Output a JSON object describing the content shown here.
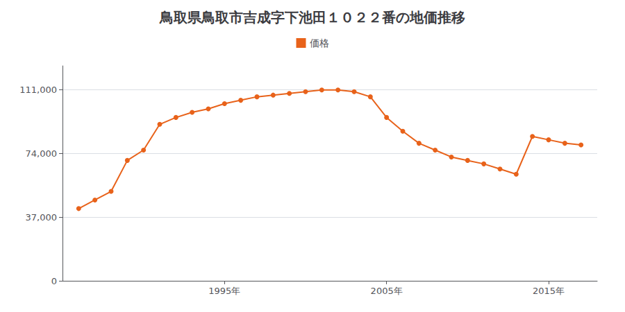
{
  "chart_data": {
    "type": "line",
    "title": "鳥取県鳥取市吉成字下池田１０２２番の地価推移",
    "x": [
      1986,
      1987,
      1988,
      1989,
      1990,
      1991,
      1992,
      1993,
      1994,
      1995,
      1996,
      1997,
      1998,
      1999,
      2000,
      2001,
      2002,
      2003,
      2004,
      2005,
      2006,
      2007,
      2008,
      2009,
      2010,
      2011,
      2012,
      2013,
      2014,
      2015,
      2016,
      2017
    ],
    "series": [
      {
        "name": "価格",
        "color": "#E8621A",
        "values": [
          42000,
          47000,
          52000,
          70000,
          76000,
          91000,
          95000,
          98000,
          100000,
          103000,
          105000,
          107000,
          108000,
          109000,
          110000,
          111000,
          111000,
          110000,
          107000,
          95000,
          87000,
          80000,
          76000,
          72000,
          70000,
          68000,
          65000,
          62000,
          84000,
          82000,
          80000,
          79000
        ]
      }
    ],
    "xlim": [
      1985,
      2018
    ],
    "xticks": [
      {
        "value": 1995,
        "label": "1995年"
      },
      {
        "value": 2005,
        "label": "2005年"
      },
      {
        "value": 2015,
        "label": "2015年"
      }
    ],
    "ylim": [
      0,
      125000
    ],
    "yticks": [
      0,
      {
        "value": 37000,
        "label": "37,000"
      },
      {
        "value": 74000,
        "label": "74,000"
      },
      {
        "value": 111000,
        "label": "111,000"
      }
    ],
    "grid": true,
    "legend": "top",
    "marker": "circle"
  }
}
